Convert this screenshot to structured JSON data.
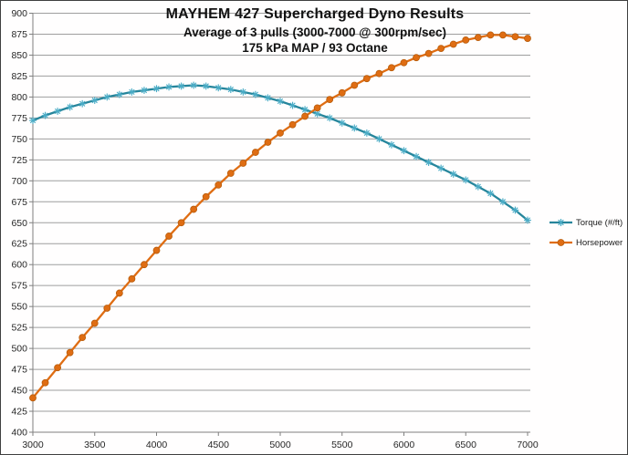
{
  "chart_data": {
    "type": "line",
    "title": "MAYHEM 427 Supercharged Dyno Results",
    "subtitle": "Average of 3 pulls (3000-7000 @ 300rpm/sec)",
    "subtitle2": "175 kPa MAP / 93 Octane",
    "xlim": [
      3000,
      7000
    ],
    "ylim": [
      400,
      900
    ],
    "ytick_step": 25,
    "xticks": [
      3000,
      3500,
      4000,
      4500,
      5000,
      5500,
      6000,
      6500,
      7000
    ],
    "grid": "horizontal",
    "legend_position": "right",
    "x": [
      3000,
      3100,
      3200,
      3300,
      3400,
      3500,
      3600,
      3700,
      3800,
      3900,
      4000,
      4100,
      4200,
      4300,
      4400,
      4500,
      4600,
      4700,
      4800,
      4900,
      5000,
      5100,
      5200,
      5300,
      5400,
      5500,
      5600,
      5700,
      5800,
      5900,
      6000,
      6100,
      6200,
      6300,
      6400,
      6500,
      6600,
      6700,
      6800,
      6900,
      7000
    ],
    "series": [
      {
        "name": "Torque (#/ft)",
        "marker": "asterisk",
        "color": "#26859B",
        "marker_color": "#4BACC6",
        "values": [
          772,
          778,
          783,
          788,
          792,
          796,
          800,
          803,
          806,
          808,
          810,
          812,
          813,
          814,
          813,
          811,
          809,
          806,
          803,
          799,
          795,
          790,
          785,
          780,
          775,
          769,
          763,
          757,
          750,
          743,
          736,
          729,
          722,
          715,
          708,
          701,
          693,
          685,
          675,
          665,
          653
        ]
      },
      {
        "name": "Horsepower",
        "marker": "circle",
        "color": "#DF6D13",
        "marker_color": "#DF6D13",
        "values": [
          441,
          459,
          477,
          495,
          513,
          530,
          548,
          566,
          583,
          600,
          617,
          634,
          650,
          666,
          681,
          695,
          709,
          721,
          734,
          746,
          757,
          767,
          777,
          787,
          797,
          805,
          814,
          822,
          828,
          835,
          841,
          847,
          852,
          858,
          863,
          868,
          871,
          874,
          874,
          872,
          870
        ]
      }
    ]
  },
  "styles": {
    "background": "#FFFFFF",
    "border_color": "#3F3F3F",
    "gridline_color": "#9E9E9E",
    "axis_color": "#7F7F7F",
    "tick_label_color": "#262626",
    "title_color": "#111111"
  }
}
